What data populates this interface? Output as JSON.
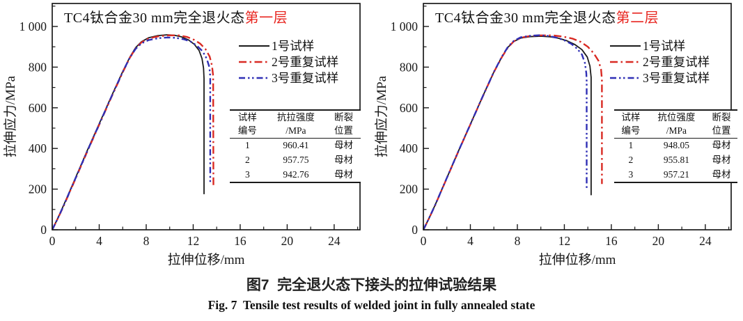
{
  "figure": {
    "caption_zh": "图7  完全退火态下接头的拉伸试验结果",
    "caption_en": "Fig. 7  Tensile test results of welded joint in fully annealed state"
  },
  "colors": {
    "axis": "#1a1a1a",
    "series1": "#1a1a1a",
    "series2": "#d92a23",
    "series3": "#2f2fb5",
    "title_highlight": "#e8251f"
  },
  "chart_data": [
    {
      "type": "line",
      "title_black": "TC4钛合金30 mm完全退火态",
      "title_red": "第一层",
      "xlabel": "拉伸位移/mm",
      "ylabel": "拉伸应力/MPa",
      "xlim": [
        0,
        26.2
      ],
      "ylim": [
        0,
        1113
      ],
      "x_major_ticks": [
        0,
        4,
        8,
        12,
        16,
        20,
        24
      ],
      "x_minor_ticks": [
        2,
        6,
        10,
        14,
        18,
        22,
        26
      ],
      "y_major_ticks": [
        0,
        200,
        400,
        600,
        800,
        1000
      ],
      "y_tick_labels": [
        "0",
        "200",
        "400",
        "600",
        "800",
        "1 000"
      ],
      "y_minor_ticks": [
        100,
        300,
        500,
        700,
        900,
        1100
      ],
      "legend": [
        {
          "label": "1号试样",
          "style": "solid",
          "color": "#1a1a1a"
        },
        {
          "label": "2号重复试样",
          "style": "dash-dot",
          "color": "#d92a23"
        },
        {
          "label": "3号重复试样",
          "style": "dash-dot-dot",
          "color": "#2f2fb5"
        }
      ],
      "series": [
        {
          "name": "1号试样",
          "style": "solid",
          "color": "#1a1a1a",
          "points": [
            [
              0,
              0
            ],
            [
              0.5,
              60
            ],
            [
              1,
              125
            ],
            [
              2,
              258
            ],
            [
              3,
              392
            ],
            [
              4,
              522
            ],
            [
              5,
              652
            ],
            [
              6,
              778
            ],
            [
              6.6,
              848
            ],
            [
              7.1,
              896
            ],
            [
              7.6,
              925
            ],
            [
              8.2,
              944
            ],
            [
              9,
              955
            ],
            [
              9.8,
              959
            ],
            [
              10.4,
              957
            ],
            [
              11,
              949
            ],
            [
              11.6,
              934
            ],
            [
              12.1,
              912
            ],
            [
              12.5,
              882
            ],
            [
              12.75,
              842
            ],
            [
              12.88,
              795
            ],
            [
              12.92,
              745
            ],
            [
              12.92,
              175
            ]
          ]
        },
        {
          "name": "2号重复试样",
          "style": "dash-dot",
          "color": "#d92a23",
          "points": [
            [
              0,
              0
            ],
            [
              0.5,
              58
            ],
            [
              1,
              121
            ],
            [
              2,
              253
            ],
            [
              3,
              387
            ],
            [
              4,
              517
            ],
            [
              5,
              648
            ],
            [
              6,
              774
            ],
            [
              6.6,
              845
            ],
            [
              7.1,
              892
            ],
            [
              7.6,
              922
            ],
            [
              8.2,
              941
            ],
            [
              9,
              951
            ],
            [
              9.9,
              956
            ],
            [
              10.8,
              956
            ],
            [
              11.5,
              948
            ],
            [
              12.1,
              934
            ],
            [
              12.6,
              915
            ],
            [
              13.05,
              888
            ],
            [
              13.4,
              852
            ],
            [
              13.6,
              808
            ],
            [
              13.7,
              758
            ],
            [
              13.72,
              215
            ]
          ]
        },
        {
          "name": "3号重复试样",
          "style": "dash-dot-dot",
          "color": "#2f2fb5",
          "points": [
            [
              0,
              0
            ],
            [
              0.5,
              59
            ],
            [
              1,
              123
            ],
            [
              2,
              255
            ],
            [
              3,
              389
            ],
            [
              4,
              519
            ],
            [
              5,
              650
            ],
            [
              6,
              776
            ],
            [
              6.6,
              846
            ],
            [
              7.1,
              890
            ],
            [
              7.6,
              917
            ],
            [
              8.2,
              933
            ],
            [
              9,
              942
            ],
            [
              9.8,
              946
            ],
            [
              10.5,
              944
            ],
            [
              11.2,
              937
            ],
            [
              11.8,
              925
            ],
            [
              12.3,
              906
            ],
            [
              12.8,
              878
            ],
            [
              13.15,
              842
            ],
            [
              13.38,
              800
            ],
            [
              13.45,
              755
            ],
            [
              13.45,
              235
            ]
          ]
        }
      ],
      "inset_table": {
        "headers": [
          [
            "试样",
            "编号"
          ],
          [
            "抗拉强度",
            "/MPa"
          ],
          [
            "断裂",
            "位置"
          ]
        ],
        "rows": [
          [
            "1",
            "960.41",
            "母材"
          ],
          [
            "2",
            "957.75",
            "母材"
          ],
          [
            "3",
            "942.76",
            "母材"
          ]
        ]
      }
    },
    {
      "type": "line",
      "title_black": "TC4钛合金30 mm完全退火态",
      "title_red": "第二层",
      "xlabel": "拉伸位移/mm",
      "ylabel": "拉伸应力/MPa",
      "xlim": [
        0,
        26.2
      ],
      "ylim": [
        0,
        1113
      ],
      "x_major_ticks": [
        0,
        4,
        8,
        12,
        16,
        20,
        24
      ],
      "x_minor_ticks": [
        2,
        6,
        10,
        14,
        18,
        22,
        26
      ],
      "y_major_ticks": [
        0,
        200,
        400,
        600,
        800,
        1000
      ],
      "y_tick_labels": [
        "0",
        "200",
        "400",
        "600",
        "800",
        "1 000"
      ],
      "y_minor_ticks": [
        100,
        300,
        500,
        700,
        900,
        1100
      ],
      "legend": [
        {
          "label": "1号试样",
          "style": "solid",
          "color": "#1a1a1a"
        },
        {
          "label": "2号重复试样",
          "style": "dash-dot",
          "color": "#d92a23"
        },
        {
          "label": "3号重复试样",
          "style": "dash-dot-dot",
          "color": "#2f2fb5"
        }
      ],
      "series": [
        {
          "name": "1号试样",
          "style": "solid",
          "color": "#1a1a1a",
          "points": [
            [
              0,
              0
            ],
            [
              0.5,
              59
            ],
            [
              1,
              122
            ],
            [
              2,
              255
            ],
            [
              3,
              389
            ],
            [
              4,
              519
            ],
            [
              5,
              650
            ],
            [
              6,
              776
            ],
            [
              6.7,
              852
            ],
            [
              7.2,
              898
            ],
            [
              7.7,
              926
            ],
            [
              8.3,
              943
            ],
            [
              9.1,
              950
            ],
            [
              10,
              952
            ],
            [
              10.8,
              949
            ],
            [
              11.5,
              942
            ],
            [
              12.2,
              930
            ],
            [
              12.9,
              911
            ],
            [
              13.5,
              886
            ],
            [
              13.95,
              850
            ],
            [
              14.18,
              805
            ],
            [
              14.28,
              750
            ],
            [
              14.28,
              170
            ]
          ]
        },
        {
          "name": "2号重复试样",
          "style": "dash-dot",
          "color": "#d92a23",
          "points": [
            [
              0,
              0
            ],
            [
              0.5,
              58
            ],
            [
              1,
              121
            ],
            [
              2,
              254
            ],
            [
              3,
              388
            ],
            [
              4,
              518
            ],
            [
              5,
              649
            ],
            [
              6,
              775
            ],
            [
              6.7,
              851
            ],
            [
              7.2,
              897
            ],
            [
              7.7,
              927
            ],
            [
              8.3,
              945
            ],
            [
              9.1,
              953
            ],
            [
              10,
              956
            ],
            [
              11,
              956
            ],
            [
              11.9,
              950
            ],
            [
              12.7,
              940
            ],
            [
              13.4,
              924
            ],
            [
              14,
              900
            ],
            [
              14.5,
              868
            ],
            [
              14.9,
              832
            ],
            [
              15.12,
              790
            ],
            [
              15.2,
              740
            ],
            [
              15.2,
              225
            ]
          ]
        },
        {
          "name": "3号重复试样",
          "style": "dash-dot-dot",
          "color": "#2f2fb5",
          "points": [
            [
              0,
              0
            ],
            [
              0.5,
              59
            ],
            [
              1,
              122
            ],
            [
              2,
              255
            ],
            [
              3,
              389
            ],
            [
              4,
              519
            ],
            [
              5,
              650
            ],
            [
              6,
              776
            ],
            [
              6.7,
              853
            ],
            [
              7.2,
              900
            ],
            [
              7.7,
              929
            ],
            [
              8.3,
              947
            ],
            [
              9.1,
              954
            ],
            [
              9.9,
              957
            ],
            [
              10.7,
              953
            ],
            [
              11.4,
              944
            ],
            [
              12,
              932
            ],
            [
              12.6,
              914
            ],
            [
              13.1,
              890
            ],
            [
              13.5,
              862
            ],
            [
              13.75,
              820
            ],
            [
              13.87,
              770
            ],
            [
              13.9,
              730
            ],
            [
              13.9,
              205
            ]
          ]
        }
      ],
      "inset_table": {
        "headers": [
          [
            "试样",
            "编号"
          ],
          [
            "抗位强度",
            "/MPa"
          ],
          [
            "断裂",
            "位置"
          ]
        ],
        "rows": [
          [
            "1",
            "948.05",
            "母材"
          ],
          [
            "2",
            "955.81",
            "母材"
          ],
          [
            "3",
            "957.21",
            "母材"
          ]
        ]
      }
    }
  ]
}
